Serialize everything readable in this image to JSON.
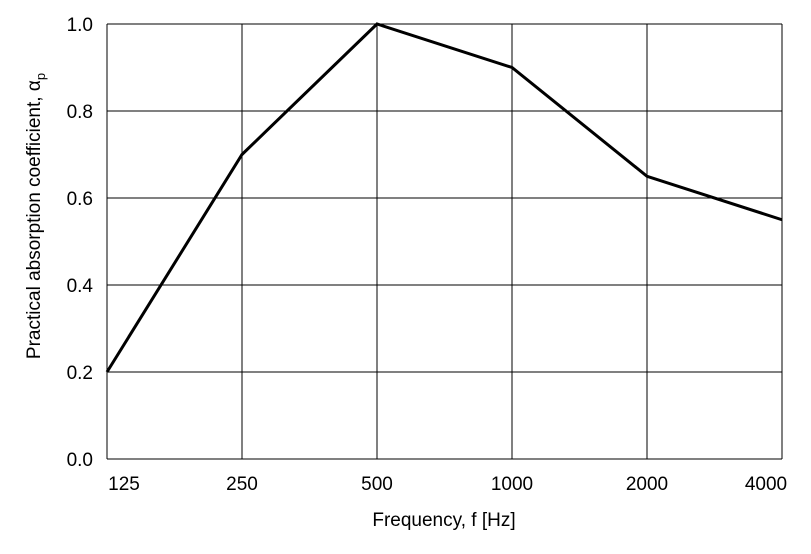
{
  "chart_data": {
    "type": "line",
    "title": "",
    "xlabel": "Frequency, f [Hz]",
    "ylabel": "Practical absorption coefficient, α",
    "ylabel_subscript": "p",
    "categories": [
      "125",
      "250",
      "500",
      "1000",
      "2000",
      "4000"
    ],
    "series": [
      {
        "values": [
          0.2,
          0.7,
          1.0,
          0.9,
          0.65,
          0.55
        ],
        "color": "#000000"
      }
    ],
    "ylim": [
      0.0,
      1.0
    ],
    "yticks": [
      "0.0",
      "0.2",
      "0.4",
      "0.6",
      "0.8",
      "1.0"
    ],
    "grid": true,
    "x_scale": "log2 (octave bands)"
  }
}
